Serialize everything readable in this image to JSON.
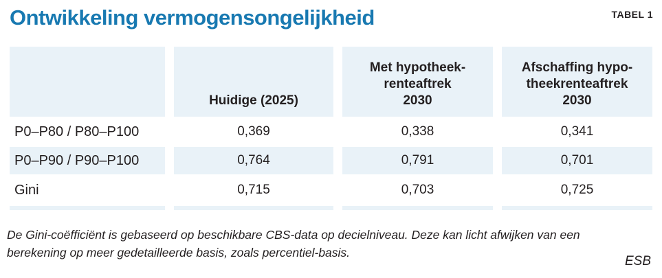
{
  "header": {
    "title": "Ontwikkeling vermogensongelijkheid",
    "label": "TABEL 1"
  },
  "chart_data": {
    "type": "table",
    "title": "Ontwikkeling vermogensongelijkheid",
    "table_label": "TABEL 1",
    "columns": [
      "",
      "Huidige (2025)",
      "Met hypotheekrenteaftrek 2030",
      "Afschaffing hypotheekrenteaftrek 2030"
    ],
    "rows": [
      {
        "label": "P0–P80 / P80–P100",
        "values": [
          "0,369",
          "0,338",
          "0,341"
        ]
      },
      {
        "label": "P0–P90 / P90–P100",
        "values": [
          "0,764",
          "0,791",
          "0,701"
        ]
      },
      {
        "label": "Gini",
        "values": [
          "0,715",
          "0,703",
          "0,725"
        ]
      }
    ],
    "number_format": "decimal-comma",
    "note": "De Gini-coëfficiënt is gebaseerd op beschikbare CBS-data op decielniveau. Deze kan licht afwijken van een berekening op meer gedetailleerde basis, zoals percentiel-basis.",
    "source": "ESB"
  },
  "display": {
    "header_lines": [
      [],
      [
        "Huidige (2025)"
      ],
      [
        "Met hypotheek-",
        "renteaftrek",
        "2030"
      ],
      [
        "Afschaffing hypo-",
        "theekrenteaftrek",
        "2030"
      ]
    ]
  },
  "colors": {
    "accent": "#1879b1",
    "shade": "#e9f2f8",
    "ink": "#231f20"
  }
}
